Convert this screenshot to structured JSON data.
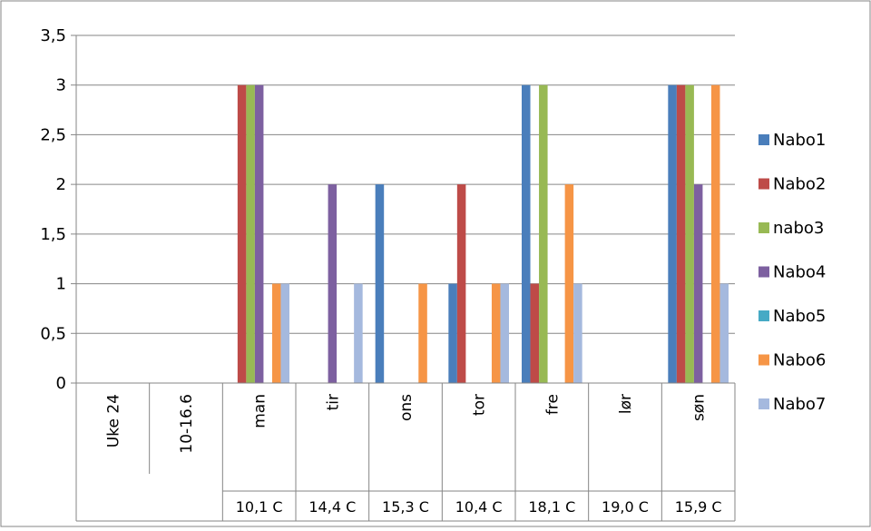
{
  "chart_data": {
    "type": "bar",
    "categories": [
      "Uke 24",
      "10-16.6",
      "man",
      "tir",
      "ons",
      "tor",
      "fre",
      "lør",
      "søn"
    ],
    "temperatures": [
      "",
      "",
      "10,1 C",
      "14,4 C",
      "15,3 C",
      "10,4 C",
      "18,1 C",
      "19,0 C",
      "15,9 C"
    ],
    "series": [
      {
        "name": "Nabo1",
        "color": "#4a7ebb",
        "values": [
          null,
          null,
          null,
          null,
          2,
          1,
          3,
          null,
          3
        ]
      },
      {
        "name": "Nabo2",
        "color": "#be4b48",
        "values": [
          null,
          null,
          3,
          null,
          null,
          2,
          1,
          null,
          3
        ]
      },
      {
        "name": "nabo3",
        "color": "#98b954",
        "values": [
          null,
          null,
          3,
          null,
          null,
          null,
          3,
          null,
          3
        ]
      },
      {
        "name": "Nabo4",
        "color": "#7d60a0",
        "values": [
          null,
          null,
          3,
          2,
          null,
          null,
          null,
          null,
          2
        ]
      },
      {
        "name": "Nabo5",
        "color": "#46aac5",
        "values": [
          null,
          null,
          null,
          null,
          null,
          null,
          null,
          null,
          null
        ]
      },
      {
        "name": "Nabo6",
        "color": "#f69546",
        "values": [
          null,
          null,
          1,
          null,
          1,
          1,
          2,
          null,
          3
        ]
      },
      {
        "name": "Nabo7",
        "color": "#a5b9de",
        "values": [
          null,
          null,
          1,
          1,
          null,
          1,
          1,
          null,
          1
        ]
      }
    ],
    "y_ticks": [
      "0",
      "0,5",
      "1",
      "1,5",
      "2",
      "2,5",
      "3",
      "3,5"
    ],
    "ylim": [
      0,
      3.5
    ],
    "grid": true,
    "legend_position": "right"
  }
}
